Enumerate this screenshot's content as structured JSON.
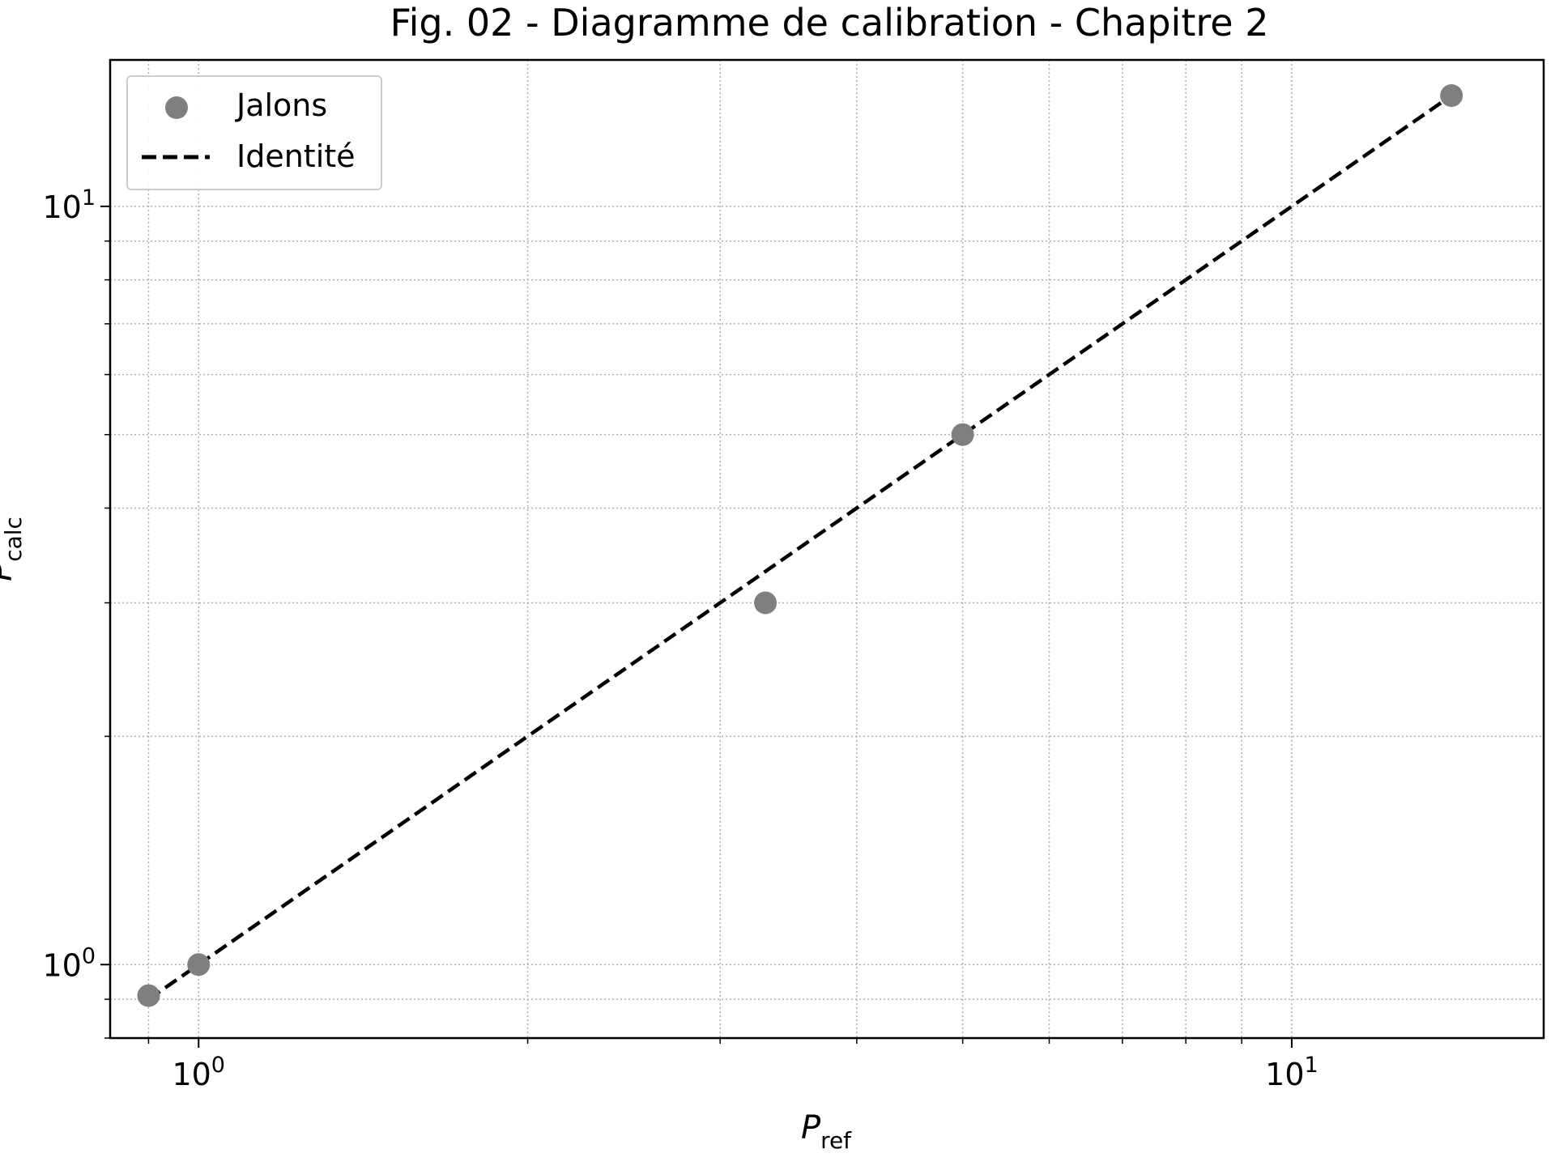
{
  "chart_data": {
    "type": "scatter",
    "title": "Fig. 02 - Diagramme de calibration - Chapitre 2",
    "xlabel": {
      "base": "P",
      "sub": "ref"
    },
    "ylabel": {
      "base": "P",
      "sub": "calc"
    },
    "xscale": "log",
    "yscale": "log",
    "xlim": [
      0.83,
      17.0
    ],
    "ylim": [
      0.8,
      15.6
    ],
    "x_ticks": [
      {
        "value": 1,
        "base": "10",
        "exp": "0"
      },
      {
        "value": 10,
        "base": "10",
        "exp": "1"
      }
    ],
    "y_ticks": [
      {
        "value": 1,
        "base": "10",
        "exp": "0"
      },
      {
        "value": 10,
        "base": "10",
        "exp": "1"
      }
    ],
    "grid": true,
    "grid_style": "dotted",
    "legend_position": "top-left",
    "series": [
      {
        "name": "Jalons",
        "kind": "scatter",
        "color": "#7f7f7f",
        "x": [
          0.9,
          1.0,
          3.3,
          5.0,
          14.0
        ],
        "y": [
          0.91,
          1.0,
          3.0,
          5.0,
          14.0
        ]
      },
      {
        "name": "Identité",
        "kind": "line",
        "style": "dashed",
        "color": "#000000",
        "x": [
          0.9,
          14.3
        ],
        "y": [
          0.9,
          14.3
        ]
      }
    ]
  }
}
